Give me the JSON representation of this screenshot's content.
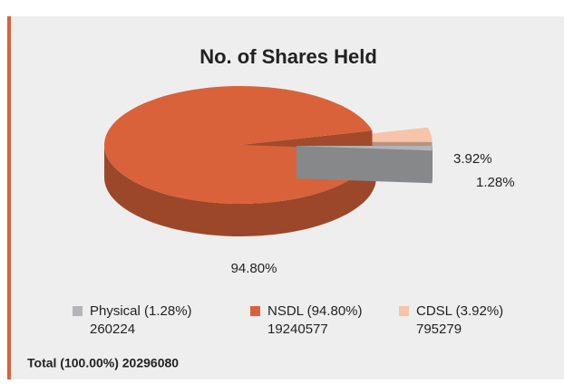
{
  "chart_data": {
    "type": "pie3d",
    "title": "No. of Shares Held",
    "categories": [
      "Physical (1.28%)",
      "NSDL (94.80%)",
      "CDSL (3.92%)"
    ],
    "counts": [
      260224,
      19240577,
      795279
    ],
    "values": [
      1.28,
      94.8,
      3.92
    ],
    "value_labels": [
      "1.28%",
      "94.80%",
      "3.92%"
    ],
    "colors": [
      "#b4b5b8",
      "#d9623a",
      "#f7c4aa"
    ],
    "exploded": [
      true,
      false,
      true
    ],
    "total_label": "Total (100.00%) 20296080"
  }
}
